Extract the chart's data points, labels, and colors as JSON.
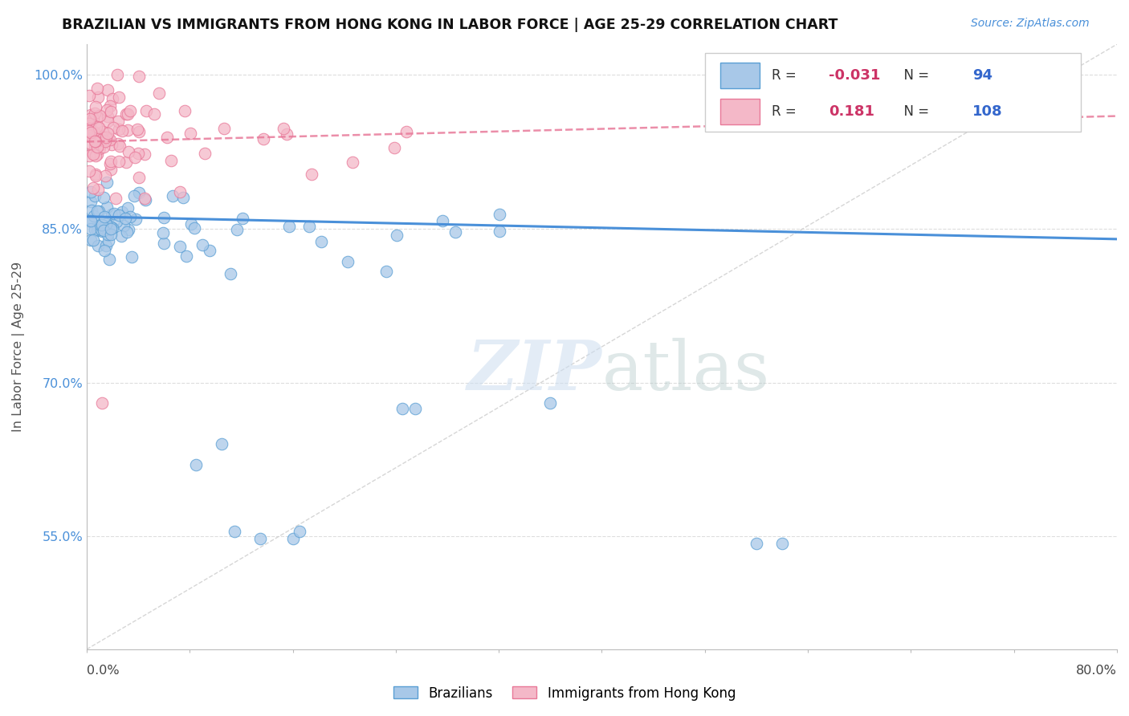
{
  "title": "BRAZILIAN VS IMMIGRANTS FROM HONG KONG IN LABOR FORCE | AGE 25-29 CORRELATION CHART",
  "source": "Source: ZipAtlas.com",
  "ylabel": "In Labor Force | Age 25-29",
  "xlim": [
    0.0,
    0.8
  ],
  "ylim": [
    0.44,
    1.03
  ],
  "yticks": [
    0.55,
    0.7,
    0.85,
    1.0
  ],
  "ytick_labels": [
    "55.0%",
    "70.0%",
    "85.0%",
    "100.0%"
  ],
  "blue_R": -0.031,
  "blue_N": 94,
  "pink_R": 0.181,
  "pink_N": 108,
  "blue_color": "#a8c8e8",
  "pink_color": "#f4b8c8",
  "blue_edge_color": "#5a9fd4",
  "pink_edge_color": "#e87898",
  "blue_line_color": "#4a90d9",
  "pink_line_color": "#e87a9a",
  "ref_line_color": "#cccccc",
  "legend_label_blue": "Brazilians",
  "legend_label_pink": "Immigrants from Hong Kong",
  "watermark": "ZIPatlas",
  "background_color": "#ffffff",
  "grid_color": "#dddddd",
  "title_color": "#111111",
  "source_color": "#4a90d9",
  "axis_label_color": "#4a90d9",
  "legend_R_color": "#cc3366",
  "legend_N_color": "#3366cc"
}
